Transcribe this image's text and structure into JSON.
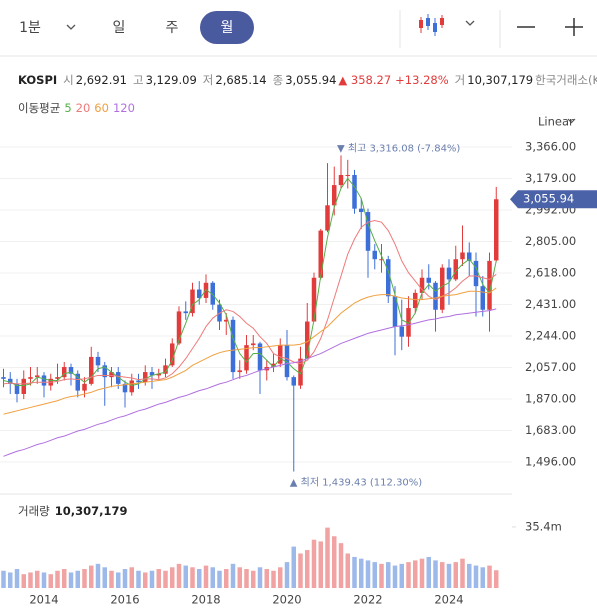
{
  "toolbar": {
    "intervals": [
      "1분",
      "일",
      "주",
      "월"
    ],
    "selected": 3
  },
  "quote": {
    "symbol": "KOSPI",
    "fields": [
      {
        "label": "시",
        "value": "2,692.91"
      },
      {
        "label": "고",
        "value": "3,129.09"
      },
      {
        "label": "저",
        "value": "2,685.14"
      },
      {
        "label": "종",
        "value": "3,055.94"
      }
    ],
    "change": "▲ 358.27",
    "change_pct": "+13.28%",
    "volume_label": "거",
    "volume": "10,307,179",
    "exchange": "한국거래소(KRX)"
  },
  "chart_data": {
    "type": "candlestick",
    "scale_label": "Linear",
    "ma_label": "이동평균",
    "categories": [
      null,
      null,
      null,
      null,
      null,
      null,
      "2014",
      null,
      null,
      null,
      null,
      null,
      null,
      null,
      null,
      null,
      null,
      null,
      "2016",
      null,
      null,
      null,
      null,
      null,
      null,
      null,
      null,
      null,
      null,
      null,
      "2018",
      null,
      null,
      null,
      null,
      null,
      null,
      null,
      null,
      null,
      null,
      null,
      "2020",
      null,
      null,
      null,
      null,
      null,
      null,
      null,
      null,
      null,
      null,
      null,
      "2022",
      null,
      null,
      null,
      null,
      null,
      null,
      null,
      null,
      null,
      null,
      null,
      "2024",
      null,
      null,
      null,
      null,
      null,
      null,
      null
    ],
    "open": [
      2000,
      1990,
      1960,
      1900,
      1990,
      2000,
      2010,
      1950,
      1990,
      2000,
      2060,
      2020,
      1920,
      1960,
      2120,
      2070,
      2000,
      2030,
      1960,
      1910,
      1980,
      1970,
      2030,
      2010,
      2020,
      2070,
      2200,
      2390,
      2380,
      2520,
      2470,
      2560,
      2430,
      2330,
      2340,
      2030,
      2040,
      2190,
      2200,
      2040,
      2060,
      2080,
      2190,
      2000,
      1950,
      2110,
      2330,
      2590,
      2870,
      3020,
      3140,
      3200,
      3200,
      3000,
      2980,
      2750,
      2700,
      2700,
      2480,
      2300,
      2240,
      2410,
      2500,
      2590,
      2560,
      2400,
      2650,
      2580,
      2700,
      2740,
      2690,
      2540,
      2400,
      2692.91
    ],
    "high": [
      2050,
      2030,
      1990,
      2040,
      2060,
      2060,
      2030,
      2020,
      2080,
      2090,
      2080,
      2040,
      2000,
      2180,
      2150,
      2090,
      2060,
      2060,
      1980,
      2020,
      2020,
      2070,
      2060,
      2050,
      2110,
      2230,
      2420,
      2450,
      2560,
      2570,
      2610,
      2570,
      2460,
      2380,
      2360,
      2100,
      2250,
      2250,
      2210,
      2100,
      2140,
      2230,
      2280,
      2010,
      2180,
      2440,
      2620,
      2880,
      3270,
      3250,
      3316.08,
      3290,
      3230,
      3060,
      3000,
      2790,
      2790,
      2720,
      2540,
      2460,
      2480,
      2520,
      2640,
      2670,
      2570,
      2670,
      2700,
      2780,
      2900,
      2800,
      2740,
      2600,
      2740,
      3129.09
    ],
    "low": [
      1940,
      1900,
      1850,
      1870,
      1950,
      1960,
      1880,
      1920,
      1960,
      1980,
      1950,
      1880,
      1880,
      1950,
      2030,
      1830,
      1940,
      1930,
      1820,
      1890,
      1930,
      1950,
      1930,
      1990,
      2000,
      2060,
      2190,
      2340,
      2360,
      2430,
      2440,
      2400,
      2280,
      2250,
      1990,
      1990,
      2020,
      2160,
      1900,
      1980,
      2030,
      2060,
      1980,
      1439.43,
      1930,
      2110,
      2330,
      2580,
      2860,
      2960,
      3120,
      3120,
      2970,
      2880,
      2590,
      2640,
      2620,
      2440,
      2130,
      2160,
      2180,
      2380,
      2460,
      2520,
      2270,
      2380,
      2430,
      2570,
      2660,
      2600,
      2360,
      2360,
      2270,
      2685.14
    ],
    "close": [
      1990,
      1960,
      1900,
      1990,
      2000,
      2010,
      1950,
      1990,
      2000,
      2060,
      2020,
      1920,
      1960,
      2120,
      2070,
      2000,
      2030,
      1960,
      1910,
      1980,
      1970,
      2030,
      2010,
      2020,
      2070,
      2200,
      2390,
      2380,
      2520,
      2470,
      2560,
      2430,
      2330,
      2340,
      2030,
      2040,
      2190,
      2200,
      2040,
      2060,
      2080,
      2190,
      2000,
      1950,
      2110,
      2330,
      2590,
      2870,
      3020,
      3140,
      3200,
      3200,
      3000,
      2980,
      2750,
      2700,
      2700,
      2480,
      2300,
      2240,
      2410,
      2500,
      2590,
      2560,
      2400,
      2650,
      2580,
      2700,
      2740,
      2690,
      2540,
      2400,
      2690,
      3055.94
    ],
    "up_color": "#e23b3b",
    "down_color": "#3d6fd8",
    "ylim": [
      1330,
      3467
    ],
    "yticks": [
      {
        "value": 3366,
        "label": "3,366.00"
      },
      {
        "value": 3179,
        "label": "3,179.00"
      },
      {
        "value": 2992,
        "label": "2,992.00"
      },
      {
        "value": 2805,
        "label": "2,805.00"
      },
      {
        "value": 2618,
        "label": "2,618.00"
      },
      {
        "value": 2431,
        "label": "2,431.00"
      },
      {
        "value": 2244,
        "label": "2,244.00"
      },
      {
        "value": 2057,
        "label": "2,057.00"
      },
      {
        "value": 1870,
        "label": "1,870.00"
      },
      {
        "value": 1683,
        "label": "1,683.00"
      },
      {
        "value": 1496,
        "label": "1,496.00"
      }
    ],
    "grid": true,
    "last_price": {
      "value": 3055.94,
      "label": "3,055.94"
    },
    "last_price_color": "#4a62a8",
    "moving_averages": [
      {
        "name": "5",
        "color": "#55b04a",
        "values": [
          1980,
          1970,
          1950,
          1950,
          1960,
          2000,
          1990,
          1980,
          1980,
          2020,
          2030,
          2000,
          1970,
          2000,
          2050,
          2060,
          2030,
          2000,
          1970,
          1950,
          1960,
          1990,
          2010,
          2020,
          2030,
          2100,
          2220,
          2320,
          2430,
          2460,
          2520,
          2490,
          2440,
          2370,
          2230,
          2140,
          2090,
          2140,
          2140,
          2100,
          2060,
          2110,
          2090,
          2050,
          2020,
          2130,
          2340,
          2600,
          2830,
          3010,
          3120,
          3180,
          3130,
          3060,
          2910,
          2810,
          2720,
          2630,
          2490,
          2340,
          2320,
          2380,
          2500,
          2550,
          2510,
          2540,
          2560,
          2630,
          2670,
          2700,
          2650,
          2550,
          2500,
          2690
        ]
      },
      {
        "name": "20",
        "color": "#ee7a7a",
        "values": [
          1960,
          1965,
          1960,
          1960,
          1965,
          1970,
          1970,
          1970,
          1975,
          1985,
          1990,
          1985,
          1990,
          2000,
          2010,
          2010,
          2010,
          2005,
          2000,
          1995,
          1985,
          1990,
          1990,
          1985,
          1995,
          2020,
          2060,
          2110,
          2170,
          2230,
          2300,
          2350,
          2380,
          2400,
          2390,
          2360,
          2320,
          2290,
          2240,
          2200,
          2140,
          2120,
          2110,
          2090,
          2080,
          2100,
          2150,
          2230,
          2340,
          2470,
          2600,
          2730,
          2820,
          2890,
          2920,
          2930,
          2920,
          2870,
          2790,
          2690,
          2620,
          2570,
          2520,
          2480,
          2460,
          2480,
          2500,
          2530,
          2570,
          2600,
          2600,
          2590,
          2580,
          2610
        ]
      },
      {
        "name": "60",
        "color": "#f0a040",
        "values": [
          1780,
          1790,
          1800,
          1810,
          1820,
          1830,
          1840,
          1850,
          1860,
          1875,
          1885,
          1890,
          1900,
          1910,
          1925,
          1935,
          1945,
          1950,
          1955,
          1960,
          1965,
          1970,
          1975,
          1980,
          1985,
          2000,
          2020,
          2040,
          2070,
          2090,
          2110,
          2130,
          2145,
          2155,
          2160,
          2165,
          2170,
          2175,
          2175,
          2180,
          2185,
          2190,
          2190,
          2190,
          2195,
          2210,
          2240,
          2270,
          2300,
          2340,
          2380,
          2410,
          2440,
          2460,
          2475,
          2485,
          2490,
          2490,
          2480,
          2470,
          2465,
          2460,
          2460,
          2465,
          2470,
          2480,
          2485,
          2490,
          2500,
          2510,
          2510,
          2505,
          2500,
          2530
        ]
      },
      {
        "name": "120",
        "color": "#b070e0",
        "values": [
          1530,
          1545,
          1560,
          1570,
          1585,
          1600,
          1610,
          1625,
          1640,
          1650,
          1665,
          1680,
          1690,
          1705,
          1720,
          1730,
          1745,
          1760,
          1770,
          1785,
          1800,
          1810,
          1825,
          1840,
          1850,
          1865,
          1880,
          1890,
          1905,
          1920,
          1930,
          1945,
          1960,
          1970,
          1985,
          2000,
          2010,
          2025,
          2040,
          2050,
          2060,
          2070,
          2080,
          2085,
          2095,
          2110,
          2125,
          2140,
          2160,
          2180,
          2200,
          2215,
          2230,
          2245,
          2260,
          2270,
          2280,
          2290,
          2300,
          2305,
          2310,
          2320,
          2330,
          2340,
          2345,
          2355,
          2360,
          2370,
          2375,
          2380,
          2385,
          2390,
          2395,
          2405
        ]
      }
    ],
    "annotations": [
      {
        "text": "▼ 최고 3,316.08 (-7.84%)",
        "value": 3316.08
      },
      {
        "text": "▲ 최저 1,439.43 (112.30%)",
        "value": 1439.43
      }
    ],
    "volume": {
      "label": "거래량",
      "value_label": "10,307,179",
      "values": [
        10000000,
        9000000,
        11000000,
        8000000,
        9000000,
        10000000,
        9000000,
        8000000,
        10000000,
        11000000,
        9000000,
        10000000,
        11000000,
        13000000,
        14000000,
        12000000,
        10000000,
        9000000,
        11000000,
        12000000,
        10000000,
        9000000,
        10000000,
        11000000,
        10000000,
        12000000,
        14000000,
        13000000,
        12000000,
        11000000,
        13000000,
        12000000,
        10000000,
        11000000,
        14000000,
        12000000,
        11000000,
        10000000,
        12000000,
        11000000,
        10000000,
        12000000,
        15000000,
        24000000,
        20000000,
        22000000,
        28000000,
        27000000,
        35000000,
        30000000,
        26000000,
        20000000,
        18000000,
        17000000,
        16000000,
        15000000,
        14000000,
        15000000,
        13000000,
        14000000,
        15000000,
        16000000,
        17000000,
        18000000,
        16000000,
        15000000,
        14000000,
        15000000,
        17000000,
        14000000,
        13000000,
        12000000,
        13000000,
        10307179
      ],
      "ylim": [
        0,
        51000000
      ],
      "yticks": [
        {
          "value": 35400000,
          "label": "35.4m"
        }
      ],
      "up_color": "#f1a3a3",
      "down_color": "#9db9ea"
    }
  }
}
